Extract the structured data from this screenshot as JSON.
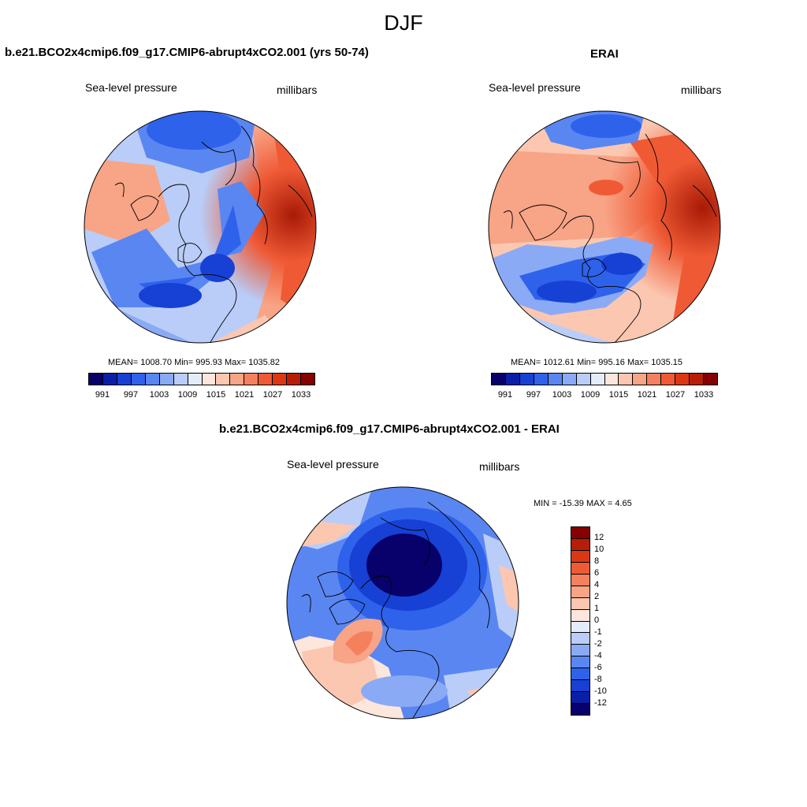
{
  "figure": {
    "title": "DJF"
  },
  "panels": [
    {
      "title": "b.e21.BCO2x4cmip6.f09_g17.CMIP6-abrupt4xCO2.001 (yrs 50-74)",
      "variable": "Sea-level pressure",
      "units": "millibars",
      "stats": "MEAN= 1008.70  Min= 995.93  Max= 1035.82"
    },
    {
      "title": "ERAI",
      "variable": "Sea-level pressure",
      "units": "millibars",
      "stats": "MEAN= 1012.61  Min= 995.16  Max= 1035.15"
    },
    {
      "title": "b.e21.BCO2x4cmip6.f09_g17.CMIP6-abrupt4xCO2.001 - ERAI",
      "variable": "Sea-level pressure",
      "units": "millibars",
      "stats": "MIN = -15.39 MAX =   4.65"
    }
  ],
  "colorbar_abs": {
    "tick_labels": [
      "991",
      "997",
      "1003",
      "1009",
      "1015",
      "1021",
      "1027",
      "1033"
    ],
    "colors": [
      "#08006b",
      "#0a1fa8",
      "#1740d4",
      "#2f62eb",
      "#5a86f2",
      "#8aaaf5",
      "#b9cdf8",
      "#e3ecfb",
      "#fde6dc",
      "#fbc7b1",
      "#f8a486",
      "#f5805e",
      "#ef5a35",
      "#dc3714",
      "#b81d08",
      "#850000"
    ]
  },
  "colorbar_diff": {
    "tick_labels": [
      "12",
      "10",
      "8",
      "6",
      "4",
      "2",
      "1",
      "0",
      "-1",
      "-2",
      "-4",
      "-6",
      "-8",
      "-10",
      "-12"
    ],
    "colors": [
      "#850000",
      "#b81d08",
      "#dc3714",
      "#ef5a35",
      "#f5805e",
      "#f8a486",
      "#fbc7b1",
      "#fde6dc",
      "#e3ecfb",
      "#b9cdf8",
      "#8aaaf5",
      "#5a86f2",
      "#2f62eb",
      "#1740d4",
      "#0a1fa8",
      "#08006b"
    ]
  }
}
